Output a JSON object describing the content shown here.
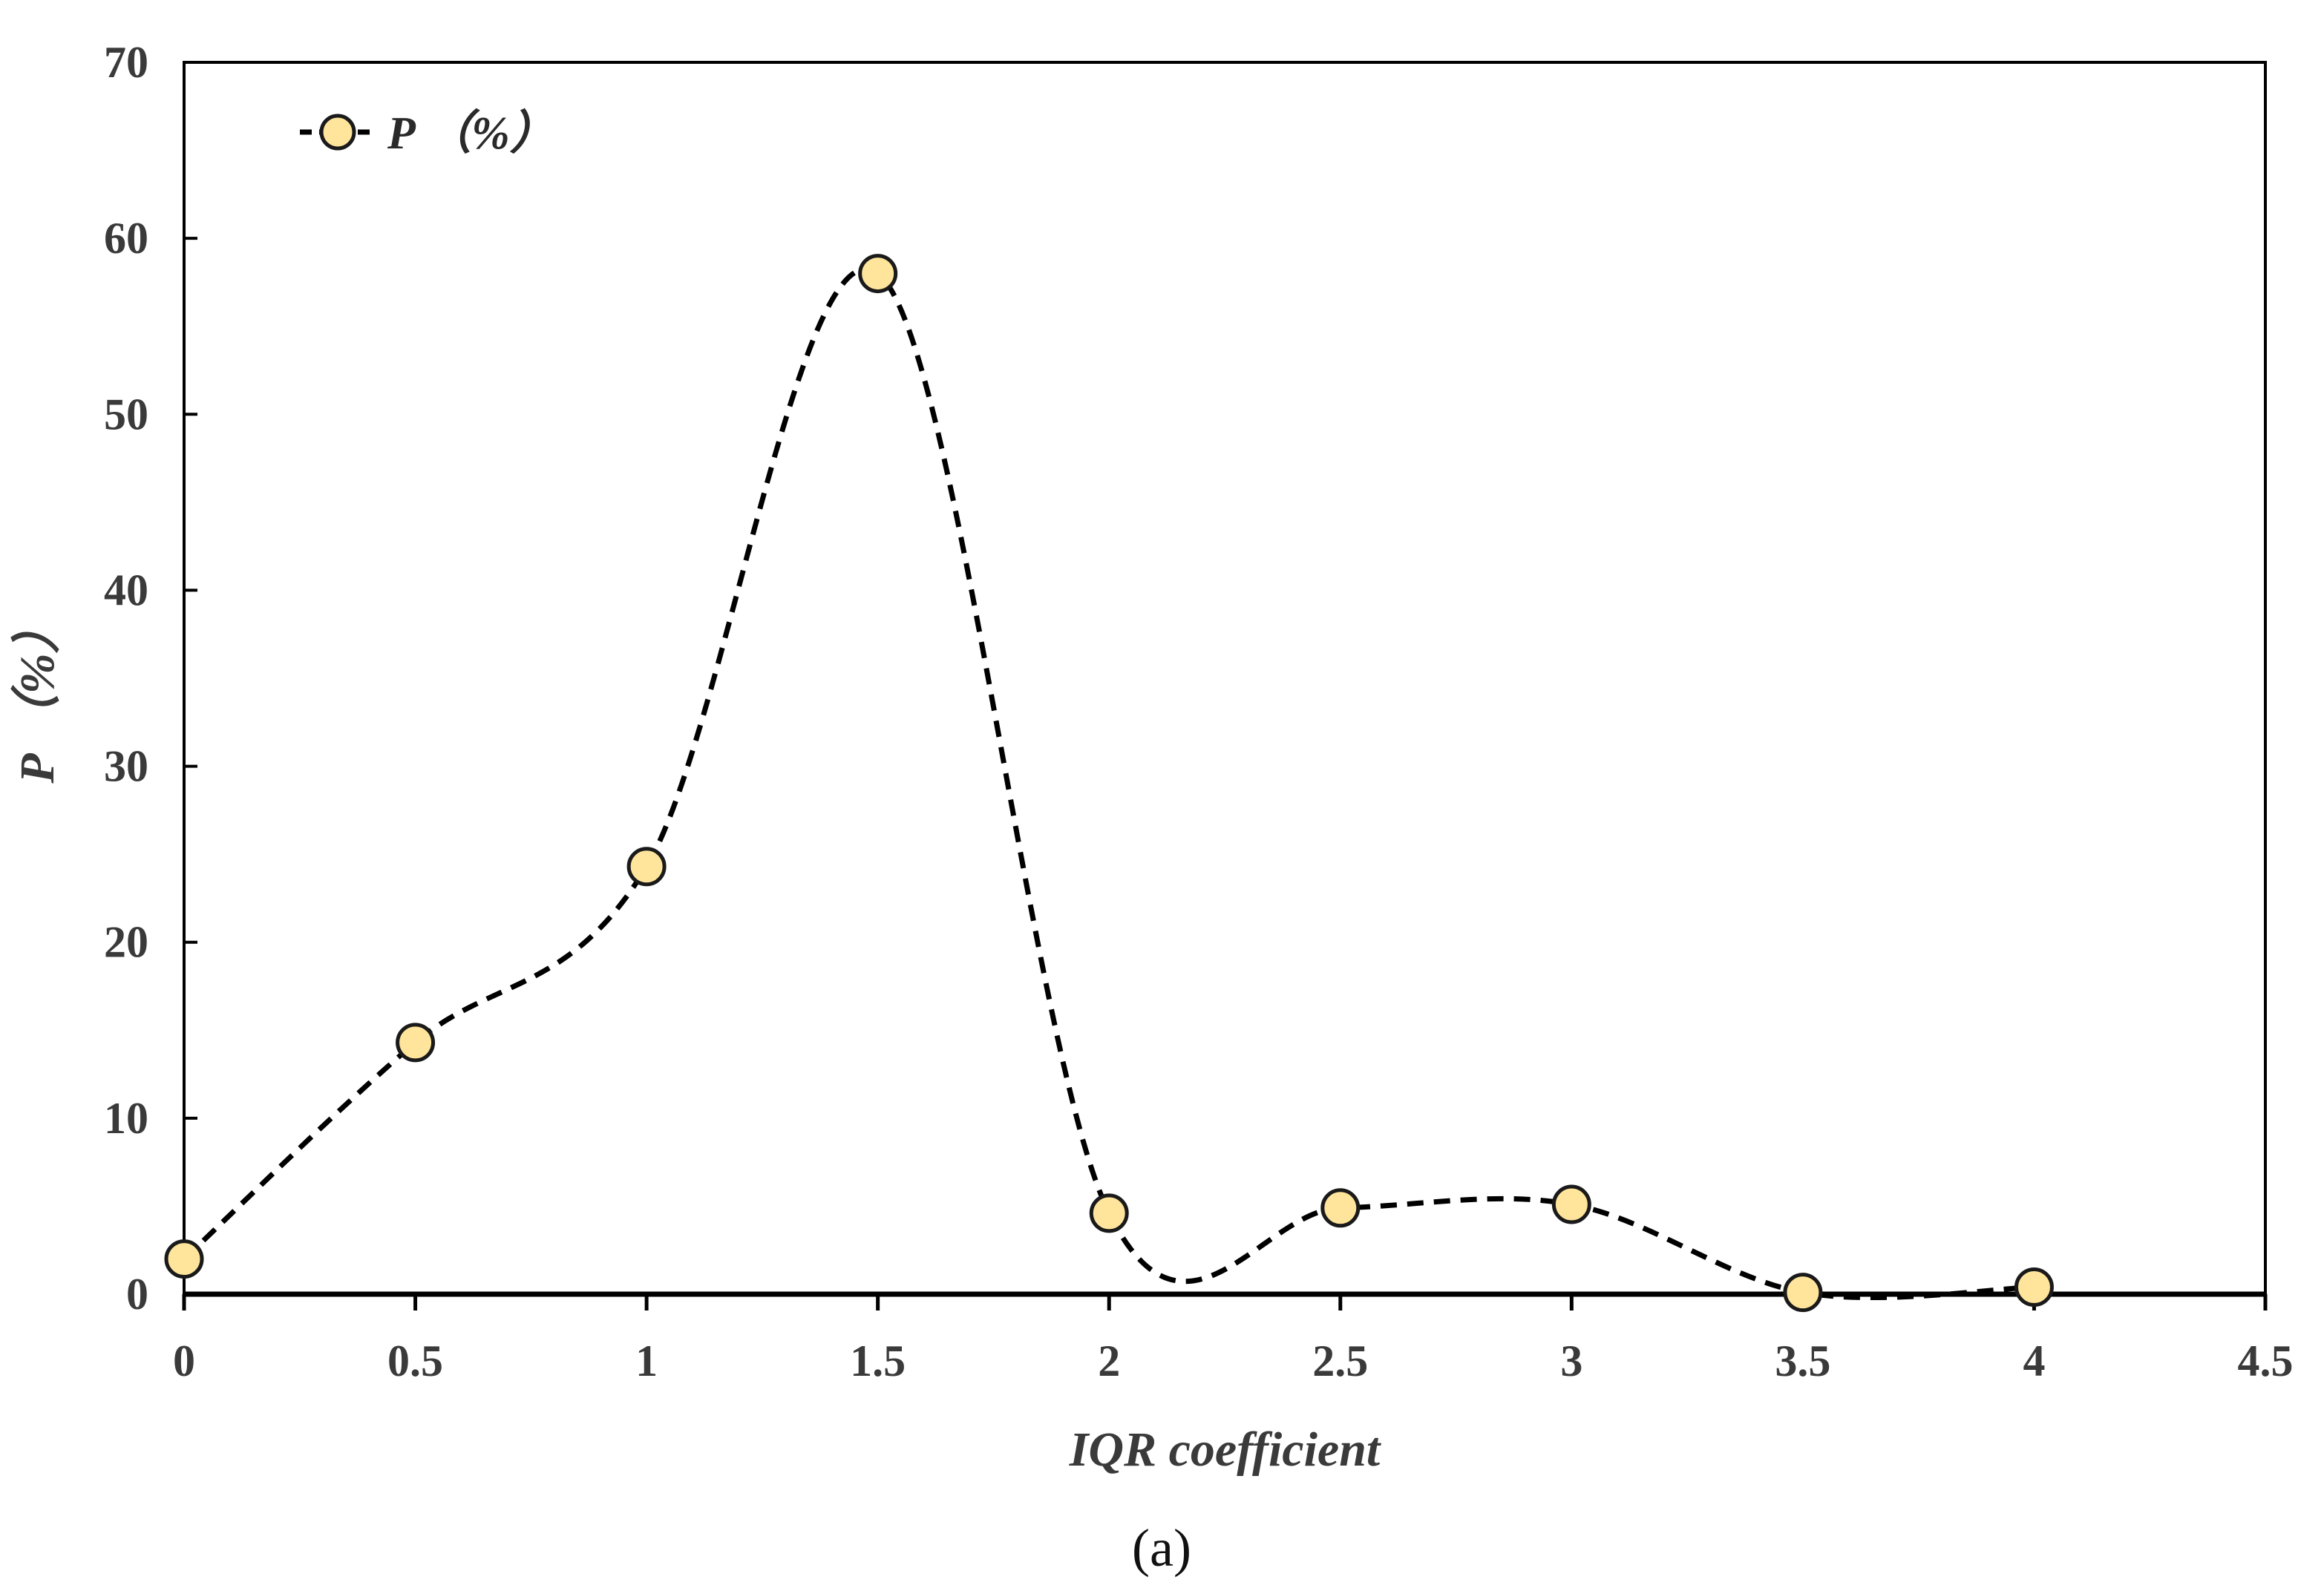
{
  "chart_data": {
    "type": "line",
    "x": [
      0,
      0.5,
      1,
      1.5,
      2,
      2.5,
      3,
      3.5,
      4
    ],
    "series": [
      {
        "name": "P （%）",
        "values": [
          2,
          14.3,
          24.3,
          58,
          4.6,
          4.9,
          5.1,
          0.1,
          0.4
        ]
      }
    ],
    "xlabel": "IQR coefficient",
    "ylabel": "P （%）",
    "xlim": [
      0,
      4.5
    ],
    "ylim": [
      0,
      70
    ],
    "x_ticks": [
      "0",
      "0.5",
      "1",
      "1.5",
      "2",
      "2.5",
      "3",
      "3.5",
      "4",
      "4.5"
    ],
    "y_ticks": [
      "0",
      "10",
      "20",
      "30",
      "40",
      "50",
      "60",
      "70"
    ],
    "grid": false,
    "legend_position": "top-left",
    "line_style": "dashed-smooth",
    "marker_fill": "#FFE49B",
    "marker_stroke": "#1a1a1a",
    "line_color": "#000000"
  },
  "caption": "(a)"
}
